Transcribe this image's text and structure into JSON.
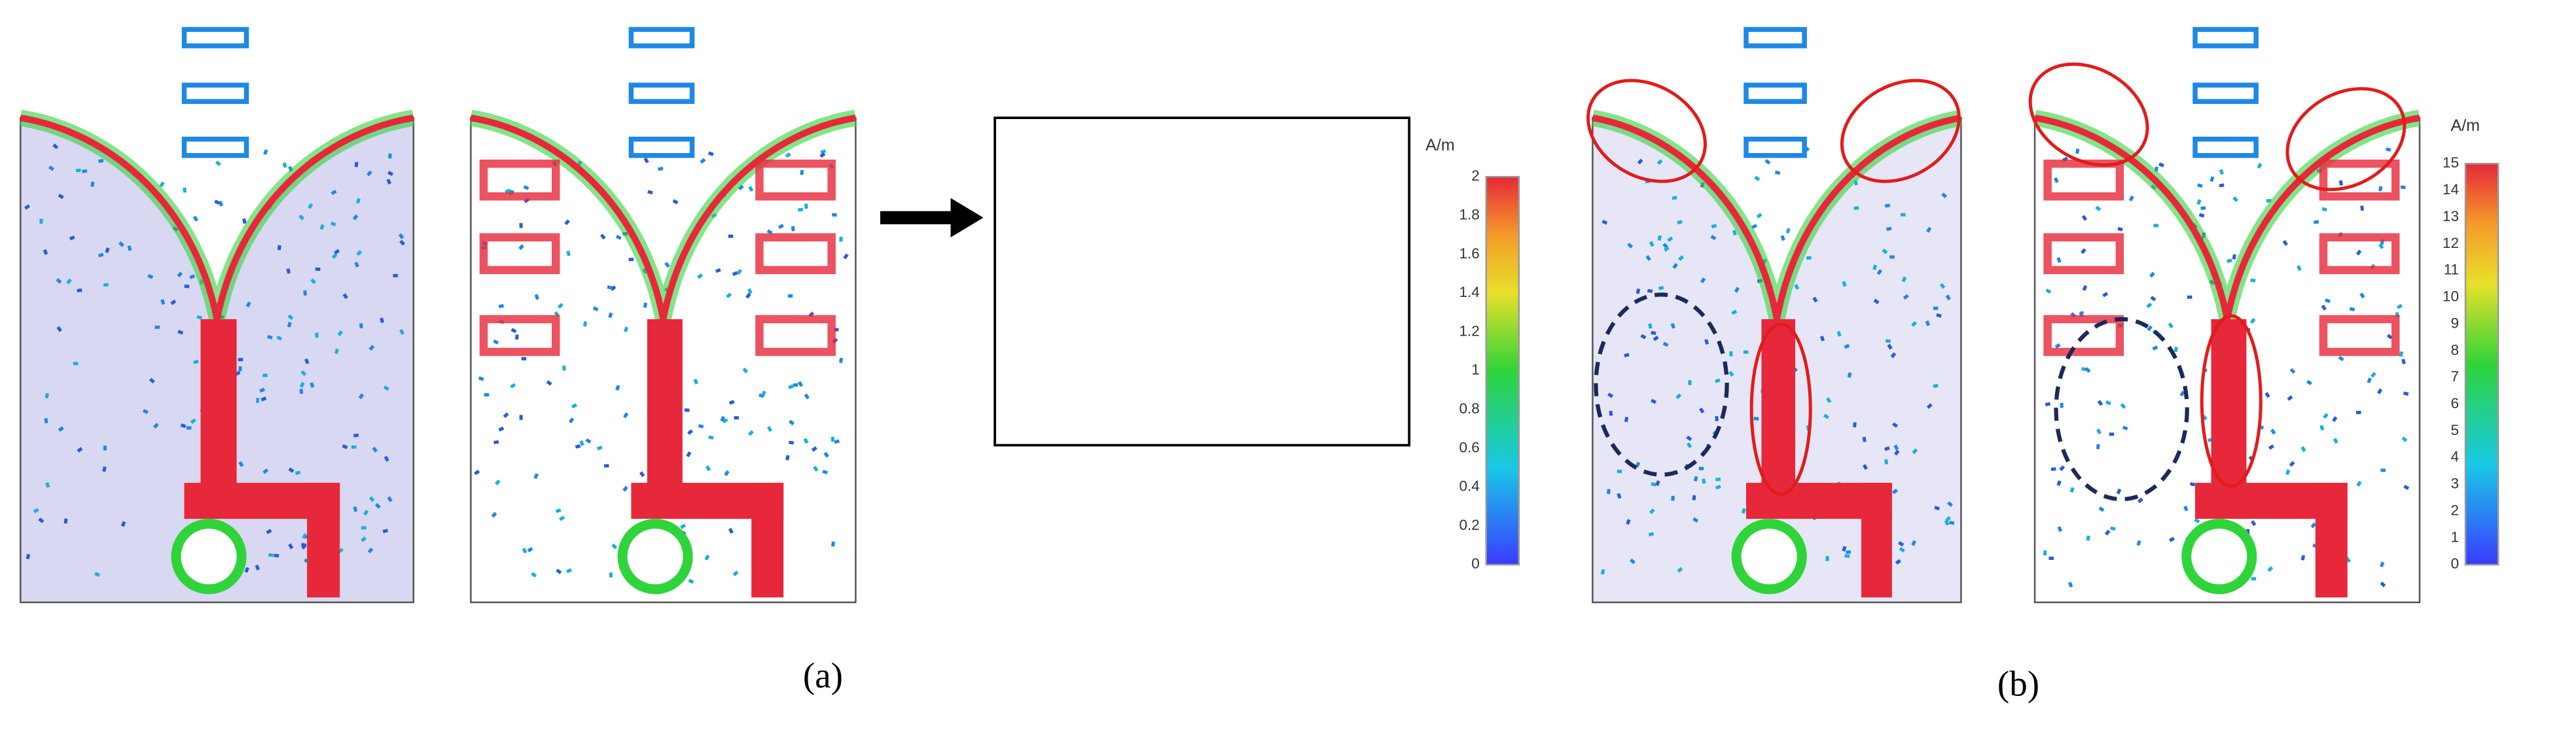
{
  "figure": {
    "panel_labels": [
      "(a)",
      "(b)"
    ],
    "colorbars": [
      {
        "unit": "A/m",
        "ticks": [
          "0",
          "0.2",
          "0.4",
          "0.6",
          "0.8",
          "1",
          "1.2",
          "1.4",
          "1.6",
          "1.8",
          "2"
        ]
      },
      {
        "unit": "A/m",
        "ticks": [
          "0",
          "1",
          "2",
          "3",
          "4",
          "5",
          "6",
          "7",
          "8",
          "9",
          "10",
          "11",
          "12",
          "13",
          "14",
          "15"
        ]
      }
    ]
  }
}
